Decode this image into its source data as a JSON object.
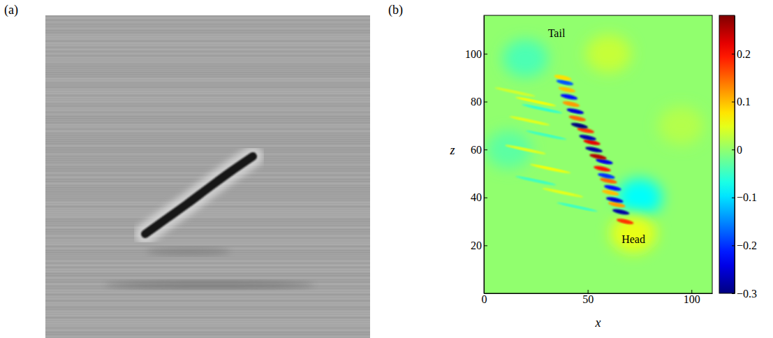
{
  "chart_data": {
    "type": "heatmap",
    "panel_labels": [
      "(a)",
      "(b)"
    ],
    "xlabel": "x",
    "ylabel": "z",
    "xlim": [
      0,
      110
    ],
    "ylim": [
      0,
      116
    ],
    "xticks": [
      0,
      50,
      100
    ],
    "yticks": [
      20,
      40,
      60,
      80,
      100
    ],
    "annotations": [
      {
        "text": "Tail",
        "x": 35,
        "z": 108
      },
      {
        "text": "Head",
        "x": 72,
        "z": 22
      }
    ],
    "background_value": 0,
    "patches": {
      "x": [
        75,
        72,
        20,
        60,
        12,
        95
      ],
      "z": [
        40,
        25,
        98,
        100,
        60,
        70
      ],
      "values": [
        -0.08,
        0.05,
        -0.04,
        0.03,
        -0.03,
        0.02
      ]
    },
    "streaks": {
      "x": [
        68,
        66,
        64,
        63,
        61,
        62,
        60,
        59,
        57,
        58,
        55,
        53,
        52,
        50,
        49,
        46,
        45,
        44,
        42,
        41,
        40,
        39,
        38,
        25,
        28,
        22,
        30,
        20,
        32,
        25,
        38,
        45,
        15
      ],
      "z": [
        30,
        34,
        37,
        39,
        42,
        44,
        47,
        49,
        52,
        55,
        57,
        60,
        63,
        65,
        68,
        70,
        73,
        76,
        79,
        82,
        85,
        88,
        90,
        80,
        77,
        72,
        66,
        60,
        52,
        47,
        42,
        36,
        84
      ],
      "values": [
        0.18,
        -0.28,
        0.12,
        -0.25,
        0.1,
        -0.22,
        0.15,
        -0.2,
        0.2,
        -0.24,
        0.25,
        -0.28,
        0.22,
        -0.27,
        0.18,
        -0.3,
        0.15,
        -0.25,
        0.12,
        -0.22,
        0.1,
        -0.18,
        0.08,
        0.06,
        -0.06,
        0.05,
        -0.05,
        0.05,
        0.06,
        -0.05,
        0.05,
        -0.05,
        0.04
      ]
    },
    "colorbar": {
      "range": [
        -0.3,
        0.28
      ],
      "ticks": [
        0.2,
        0.1,
        0,
        {
          "value": -0.1,
          "label": "−0.1"
        },
        {
          "value": -0.2,
          "label": "−0.2"
        },
        {
          "value": -0.3,
          "label": "−0.3"
        }
      ]
    }
  }
}
